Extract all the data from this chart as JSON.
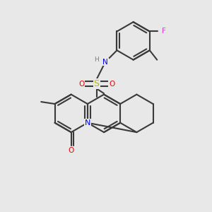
{
  "background_color": "#e8e8e8",
  "atom_colors": {
    "C": "#3a3a3a",
    "N": "#0000ee",
    "O": "#ee0000",
    "S": "#bbbb00",
    "F": "#cc44cc",
    "H": "#708090"
  },
  "bond_color": "#3a3a3a",
  "bond_width": 1.5,
  "figsize": [
    3.0,
    3.0
  ],
  "dpi": 100
}
